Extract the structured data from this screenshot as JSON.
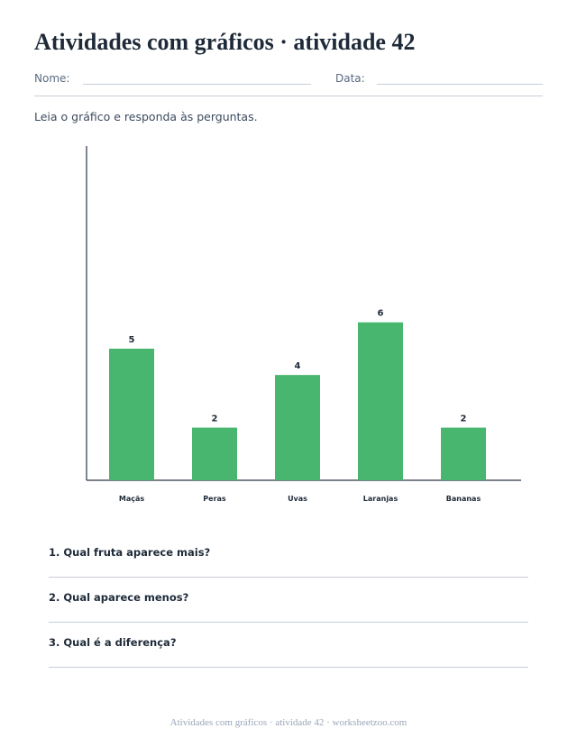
{
  "worksheet": {
    "title": "Atividades com gráficos · atividade 42",
    "name_label": "Nome:",
    "date_label": "Data:",
    "instructions": "Leia o gráfico e responda às perguntas."
  },
  "chart_data": {
    "type": "bar",
    "categories": [
      "Maçãs",
      "Peras",
      "Uvas",
      "Laranjas",
      "Bananas"
    ],
    "values": [
      5,
      2,
      4,
      6,
      2
    ],
    "title": "",
    "xlabel": "",
    "ylabel": "",
    "ylim": [
      0,
      12.7
    ],
    "grid": false,
    "bar_color": "#48b66f",
    "data_labels": true
  },
  "questions": [
    "1. Qual fruta aparece mais?",
    "2. Qual aparece menos?",
    "3. Qual é a diferença?"
  ],
  "footer": "Atividades com gráficos · atividade 42 · worksheetzoo.com"
}
